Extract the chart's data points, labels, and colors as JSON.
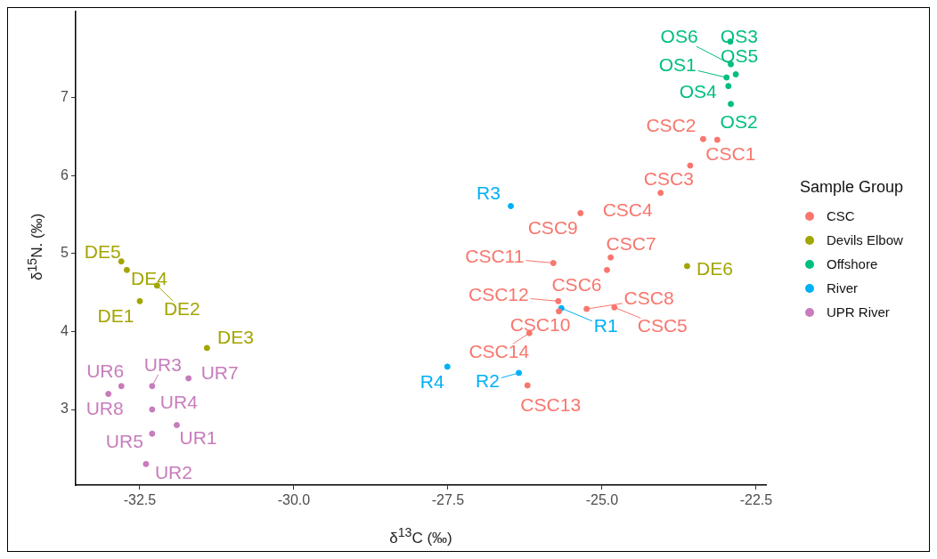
{
  "chart_data": {
    "type": "scatter",
    "xlabel": "δ$^{13}$C (‰)",
    "ylabel": "δ$^{15}$N. (‰)",
    "legend_title": "Sample Group",
    "legend": "right",
    "marker": "circle",
    "xlim": [
      -33.54,
      -22.34
    ],
    "xticks": [
      -32.5,
      {
        "value": -30,
        "label": "-30.0"
      },
      -27.5,
      {
        "value": -25,
        "label": "-25.0"
      },
      -22.5
    ],
    "ylim": [
      2.03,
      8.11
    ],
    "yticks": [
      3,
      4,
      5,
      6,
      7
    ],
    "series": [
      {
        "name": "CSC",
        "color": "#f8766d",
        "x": [
          -23.13,
          -23.36,
          -23.57,
          -24.05,
          -24.8,
          -24.92,
          -24.86,
          -25.25,
          -25.35,
          -25.7,
          -25.79,
          -25.71,
          -26.21,
          -26.18
        ],
        "values": [
          6.46,
          6.47,
          6.13,
          5.78,
          4.31,
          4.79,
          4.95,
          4.29,
          5.52,
          4.26,
          4.88,
          4.39,
          3.31,
          3.98
        ],
        "value_labels": [
          "CSC1",
          "CSC2",
          "CSC3",
          "CSC4",
          "CSC5",
          "CSC6",
          "CSC7",
          "CSC8",
          "CSC9",
          "CSC10",
          "CSC11",
          "CSC12",
          "CSC13",
          "CSC14"
        ]
      },
      {
        "name": "Devils Elbow",
        "color": "#a3a500",
        "x": [
          -32.8,
          -32.71,
          -32.22,
          -32.5,
          -31.41,
          -23.62
        ],
        "values": [
          4.9,
          4.79,
          4.59,
          4.39,
          3.79,
          4.84
        ],
        "value_labels": [
          "DE5",
          "DE4",
          "DE2",
          "DE1",
          "DE3",
          "DE6"
        ]
      },
      {
        "name": "Offshore",
        "color": "#00bf7d",
        "x": [
          -22.91,
          -22.92,
          -22.83,
          -22.98,
          -22.95,
          -22.91
        ],
        "values": [
          7.43,
          7.72,
          7.3,
          7.26,
          7.15,
          6.92
        ],
        "value_labels": [
          "OS6",
          "OS3",
          "OS5",
          "OS1",
          "OS4",
          "OS2"
        ]
      },
      {
        "name": "River",
        "color": "#00b0f6",
        "x": [
          -25.66,
          -26.35,
          -26.48,
          -27.51
        ],
        "values": [
          4.3,
          3.47,
          5.61,
          3.55
        ],
        "value_labels": [
          "R1",
          "R2",
          "R3",
          "R4"
        ]
      },
      {
        "name": "UPR River",
        "color": "#c77cbb",
        "x": [
          -32.8,
          -32.3,
          -31.71,
          -33.01,
          -32.3,
          -31.9,
          -32.3,
          -32.4
        ],
        "values": [
          3.3,
          3.3,
          3.4,
          3.2,
          3.0,
          2.8,
          2.69,
          2.3
        ],
        "value_labels": [
          "UR6",
          "UR3",
          "UR7",
          "UR8",
          "UR4",
          "UR1",
          "UR5",
          "UR2"
        ]
      }
    ]
  }
}
